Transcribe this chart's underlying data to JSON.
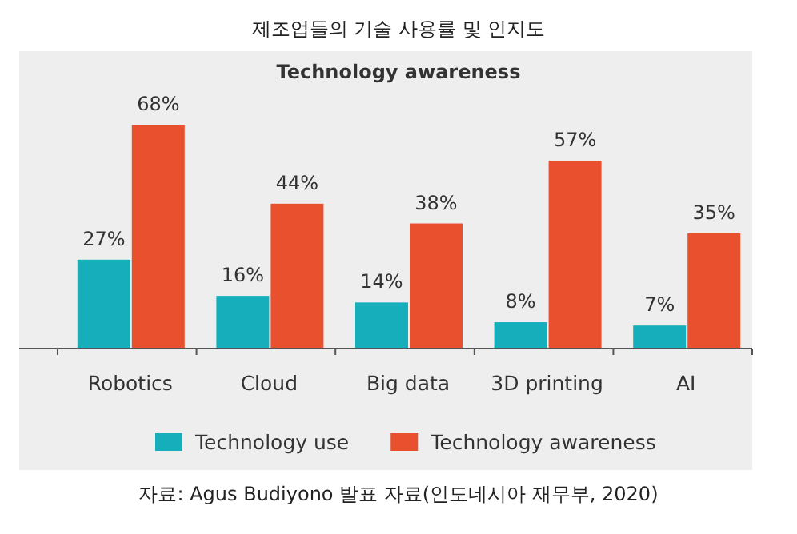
{
  "chart_data": {
    "type": "bar",
    "title": "제조업들의 기술 사용률 및 인지도",
    "subtitle": "Technology awareness",
    "categories": [
      "Robotics",
      "Cloud",
      "Big data",
      "3D printing",
      "AI"
    ],
    "series": [
      {
        "name": "Technology use",
        "color": "#17aebb",
        "values": [
          27,
          16,
          14,
          8,
          7
        ],
        "value_labels": [
          "27%",
          "16%",
          "14%",
          "8%",
          "7%"
        ]
      },
      {
        "name": "Technology awareness",
        "color": "#e9502d",
        "values": [
          68,
          44,
          38,
          57,
          35
        ],
        "value_labels": [
          "68%",
          "44%",
          "38%",
          "57%",
          "35%"
        ]
      }
    ],
    "legend": "bottom",
    "annotations": [
      "자료: Agus Budiyono 발표 자료(인도네시아 재무부, 2020)"
    ]
  }
}
